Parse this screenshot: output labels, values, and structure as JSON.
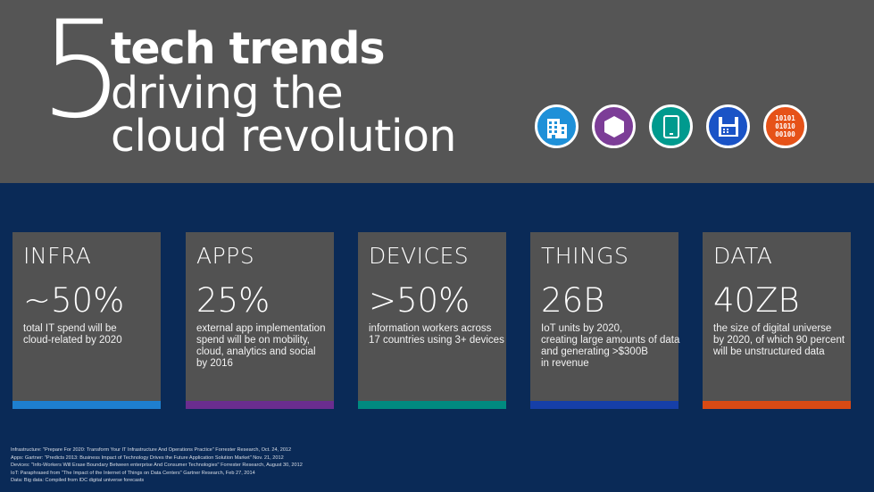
{
  "header": {
    "number": "5",
    "line1": "tech trends",
    "line2": "driving the",
    "line3": "cloud revolution",
    "data_icon_bits": [
      "10101",
      "01010",
      "00100"
    ]
  },
  "icons": [
    {
      "name": "building-icon",
      "color": "#1e90d8"
    },
    {
      "name": "hexagon-icon",
      "color": "#7c3d97"
    },
    {
      "name": "tablet-icon",
      "color": "#009a8e"
    },
    {
      "name": "save-disk-icon",
      "color": "#1a53c6"
    },
    {
      "name": "data-bits-icon",
      "color": "#e65218"
    }
  ],
  "cards": [
    {
      "label": "INFRA",
      "value": "~50%",
      "desc": [
        "total IT spend will be",
        "cloud-related by 2020"
      ],
      "color": "#1e7fcf"
    },
    {
      "label": "APPS",
      "value": "25%",
      "desc": [
        "external app implementation",
        "spend will be on mobility,",
        "cloud, analytics and social",
        "by 2016"
      ],
      "color": "#6b2d8f"
    },
    {
      "label": "DEVICES",
      "value": ">50%",
      "desc": [
        "information workers across",
        "17 countries using 3+ devices"
      ],
      "color": "#008a80"
    },
    {
      "label": "THINGS",
      "value": "26B",
      "desc": [
        "IoT units by 2020,",
        "creating large amounts of data",
        "and generating >$300B",
        "in revenue"
      ],
      "color": "#163fa8"
    },
    {
      "label": "DATA",
      "value": "40ZB",
      "desc": [
        "the size of digital universe",
        "by 2020, of which 90 percent",
        "will be unstructured data"
      ],
      "color": "#d84a14"
    }
  ],
  "footnotes": [
    "Infrastructure: \"Prepare For 2020: Transform Your IT Infrastructure And Operations Practice\" Forrester Research, Oct. 24, 2012",
    "Apps: Gartner: \"Predicts 2013: Business Impact of Technology Drives the Future Application Solution Market\" Nov. 21, 2012",
    "Devices: \"Info-Workers Will Erase Boundary Between enterprise And Consumer Technologies\" Forrester Research, August 30, 2012",
    "IoT: Paraphrased from \"The Impact of the Internet of Things on Data Centers\" Gartner Research, Feb 27, 2014",
    "Data: Big data: Compiled from IDC digital universe forecasts"
  ]
}
